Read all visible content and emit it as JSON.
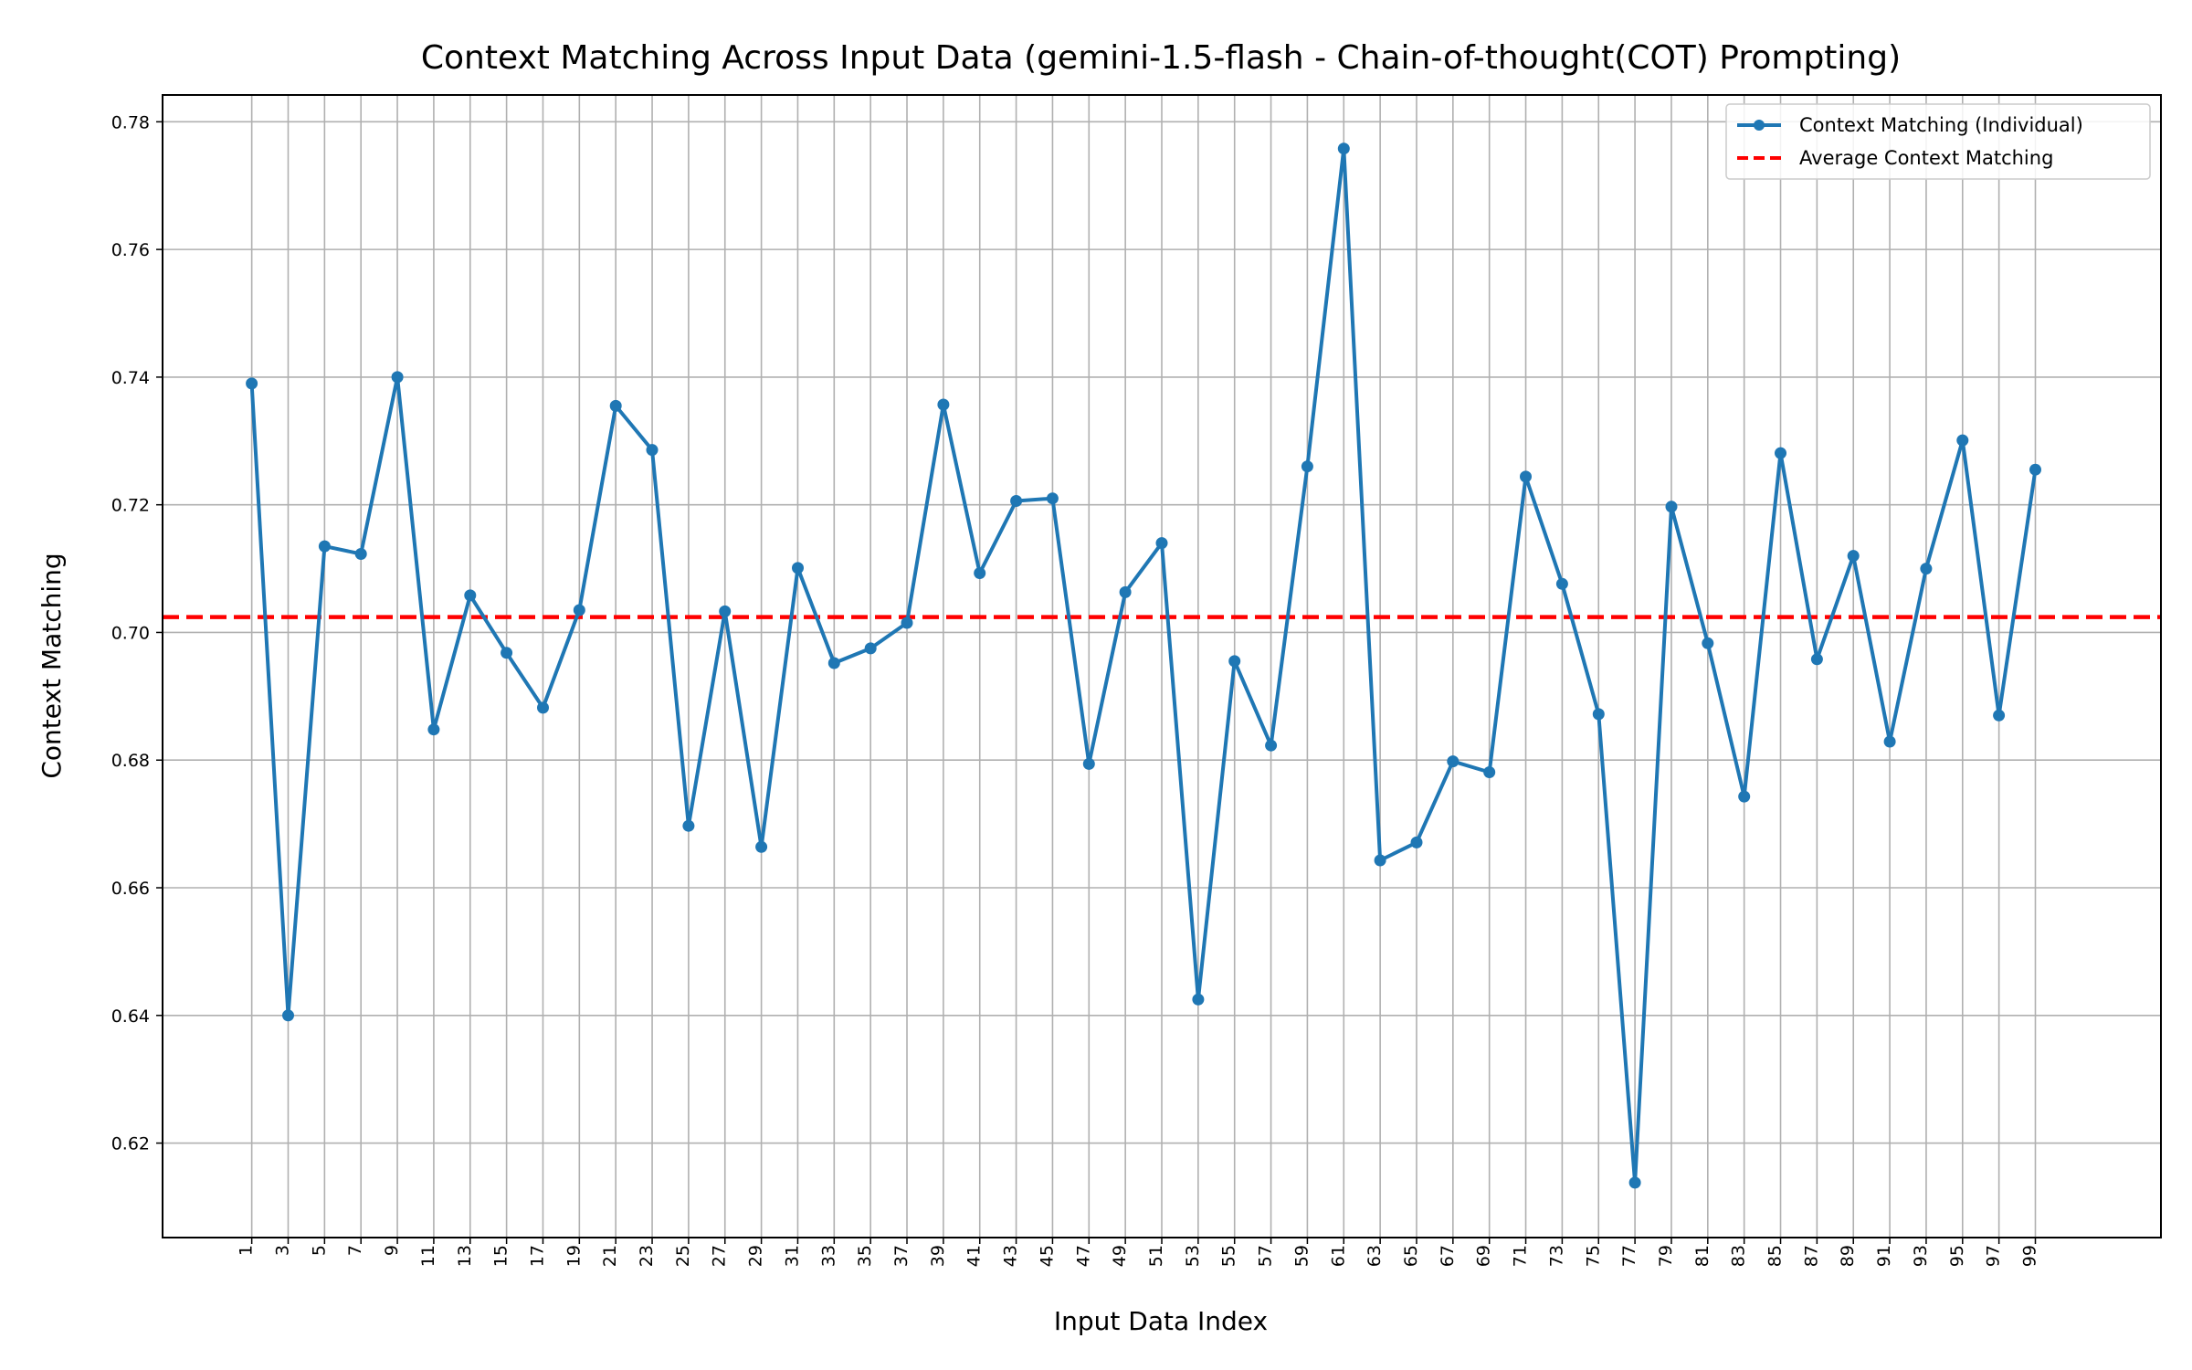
{
  "chart_data": {
    "type": "line",
    "title": "Context Matching Across Input Data (gemini-1.5-flash - Chain-of-thought(COT) Prompting)",
    "xlabel": "Input Data Index",
    "ylabel": "Context Matching",
    "x": [
      1,
      3,
      5,
      7,
      9,
      11,
      13,
      15,
      17,
      19,
      21,
      23,
      25,
      27,
      29,
      31,
      33,
      35,
      37,
      39,
      41,
      43,
      45,
      47,
      49,
      51,
      53,
      55,
      57,
      59,
      61,
      63,
      65,
      67,
      69,
      71,
      73,
      75,
      77,
      79,
      81,
      83,
      85,
      87,
      89,
      91,
      93,
      95,
      97,
      99
    ],
    "xticks": [
      "1",
      "3",
      "5",
      "7",
      "9",
      "11",
      "13",
      "15",
      "17",
      "19",
      "21",
      "23",
      "25",
      "27",
      "29",
      "31",
      "33",
      "35",
      "37",
      "39",
      "41",
      "43",
      "45",
      "47",
      "49",
      "51",
      "53",
      "55",
      "57",
      "59",
      "61",
      "63",
      "65",
      "67",
      "69",
      "71",
      "73",
      "75",
      "77",
      "79",
      "81",
      "83",
      "85",
      "87",
      "89",
      "91",
      "93",
      "95",
      "97",
      "99"
    ],
    "yticks": [
      "0.62",
      "0.64",
      "0.66",
      "0.68",
      "0.70",
      "0.72",
      "0.74",
      "0.76",
      "0.78"
    ],
    "xlim": [
      -3.9,
      105.9
    ],
    "ylim": [
      0.6052,
      0.7842
    ],
    "grid": true,
    "legend_position": "upper right",
    "series": [
      {
        "name": "Context Matching (Individual)",
        "color": "#1f77b4",
        "marker": "circle",
        "values": [
          0.739,
          0.64,
          0.7135,
          0.7123,
          0.74,
          0.6848,
          0.7058,
          0.6968,
          0.6882,
          0.7035,
          0.7355,
          0.7286,
          0.6697,
          0.7033,
          0.6664,
          0.7101,
          0.6952,
          0.6975,
          0.7015,
          0.7357,
          0.7093,
          0.7206,
          0.721,
          0.6794,
          0.7063,
          0.714,
          0.6425,
          0.6955,
          0.6823,
          0.726,
          0.7758,
          0.6643,
          0.6671,
          0.6798,
          0.6781,
          0.7244,
          0.7076,
          0.6872,
          0.6138,
          0.7197,
          0.6983,
          0.6743,
          0.7281,
          0.6958,
          0.712,
          0.6829,
          0.71,
          0.7301,
          0.687,
          0.7255
        ]
      }
    ],
    "reference_lines": [
      {
        "name": "Average Context Matching",
        "value": 0.7024,
        "color": "#ff0000",
        "style": "dashed"
      }
    ]
  }
}
